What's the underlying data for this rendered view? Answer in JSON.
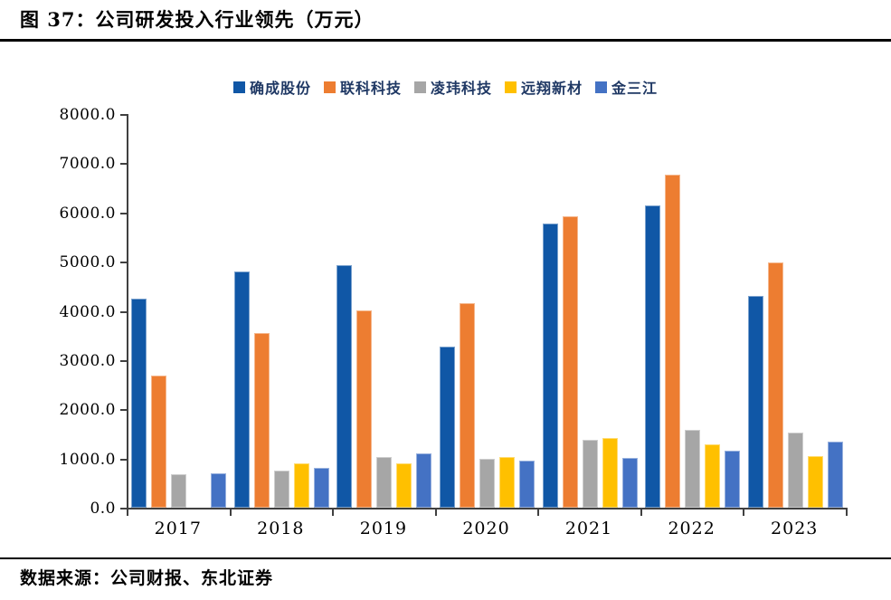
{
  "header": {
    "title": "图 37：公司研发投入行业领先（万元）"
  },
  "footer": {
    "source": "数据来源：公司财报、东北证券"
  },
  "chart_data": {
    "type": "bar",
    "title": "公司研发投入行业领先（万元）",
    "categories": [
      "2017",
      "2018",
      "2019",
      "2020",
      "2021",
      "2022",
      "2023"
    ],
    "series": [
      {
        "name": "确成股份",
        "color": "#1057a6",
        "values": [
          4250,
          4800,
          4920,
          3280,
          5770,
          6140,
          4310
        ]
      },
      {
        "name": "联科科技",
        "color": "#ed7d31",
        "values": [
          2680,
          3550,
          4000,
          4150,
          5930,
          6760,
          4980
        ]
      },
      {
        "name": "凌玮科技",
        "color": "#a6a6a6",
        "values": [
          680,
          760,
          1030,
          1000,
          1380,
          1580,
          1530
        ]
      },
      {
        "name": "远翔新材",
        "color": "#ffc000",
        "values": [
          0,
          900,
          900,
          1030,
          1410,
          1290,
          1050
        ]
      },
      {
        "name": "金三江",
        "color": "#4472c4",
        "values": [
          700,
          810,
          1110,
          950,
          1010,
          1160,
          1340
        ]
      }
    ],
    "xlabel": "",
    "ylabel": "",
    "ylim": [
      0,
      8000
    ],
    "ytick_step": 1000,
    "ytick_labels": [
      "0.0",
      "1000.0",
      "2000.0",
      "3000.0",
      "4000.0",
      "5000.0",
      "6000.0",
      "7000.0",
      "8000.0"
    ],
    "legend_position": "top",
    "grid": false,
    "axis_color": "#404040"
  }
}
